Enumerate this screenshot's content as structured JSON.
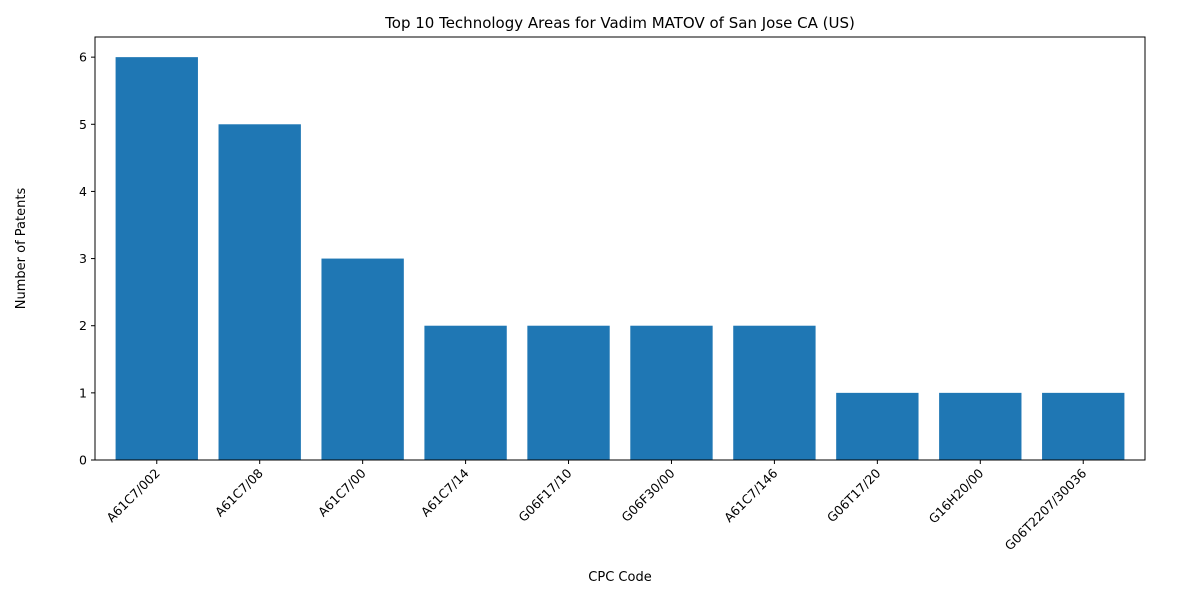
{
  "chart_data": {
    "type": "bar",
    "title": "Top 10 Technology Areas for Vadim MATOV of San Jose CA (US)",
    "xlabel": "CPC Code",
    "ylabel": "Number of Patents",
    "categories": [
      "A61C7/002",
      "A61C7/08",
      "A61C7/00",
      "A61C7/14",
      "G06F17/10",
      "G06F30/00",
      "A61C7/146",
      "G06T17/20",
      "G16H20/00",
      "G06T2207/30036"
    ],
    "values": [
      6,
      5,
      3,
      2,
      2,
      2,
      2,
      1,
      1,
      1
    ],
    "ylim": [
      0,
      6.3
    ],
    "yticks": [
      0,
      1,
      2,
      3,
      4,
      5,
      6
    ],
    "grid": false,
    "bar_color": "#1f77b4"
  }
}
